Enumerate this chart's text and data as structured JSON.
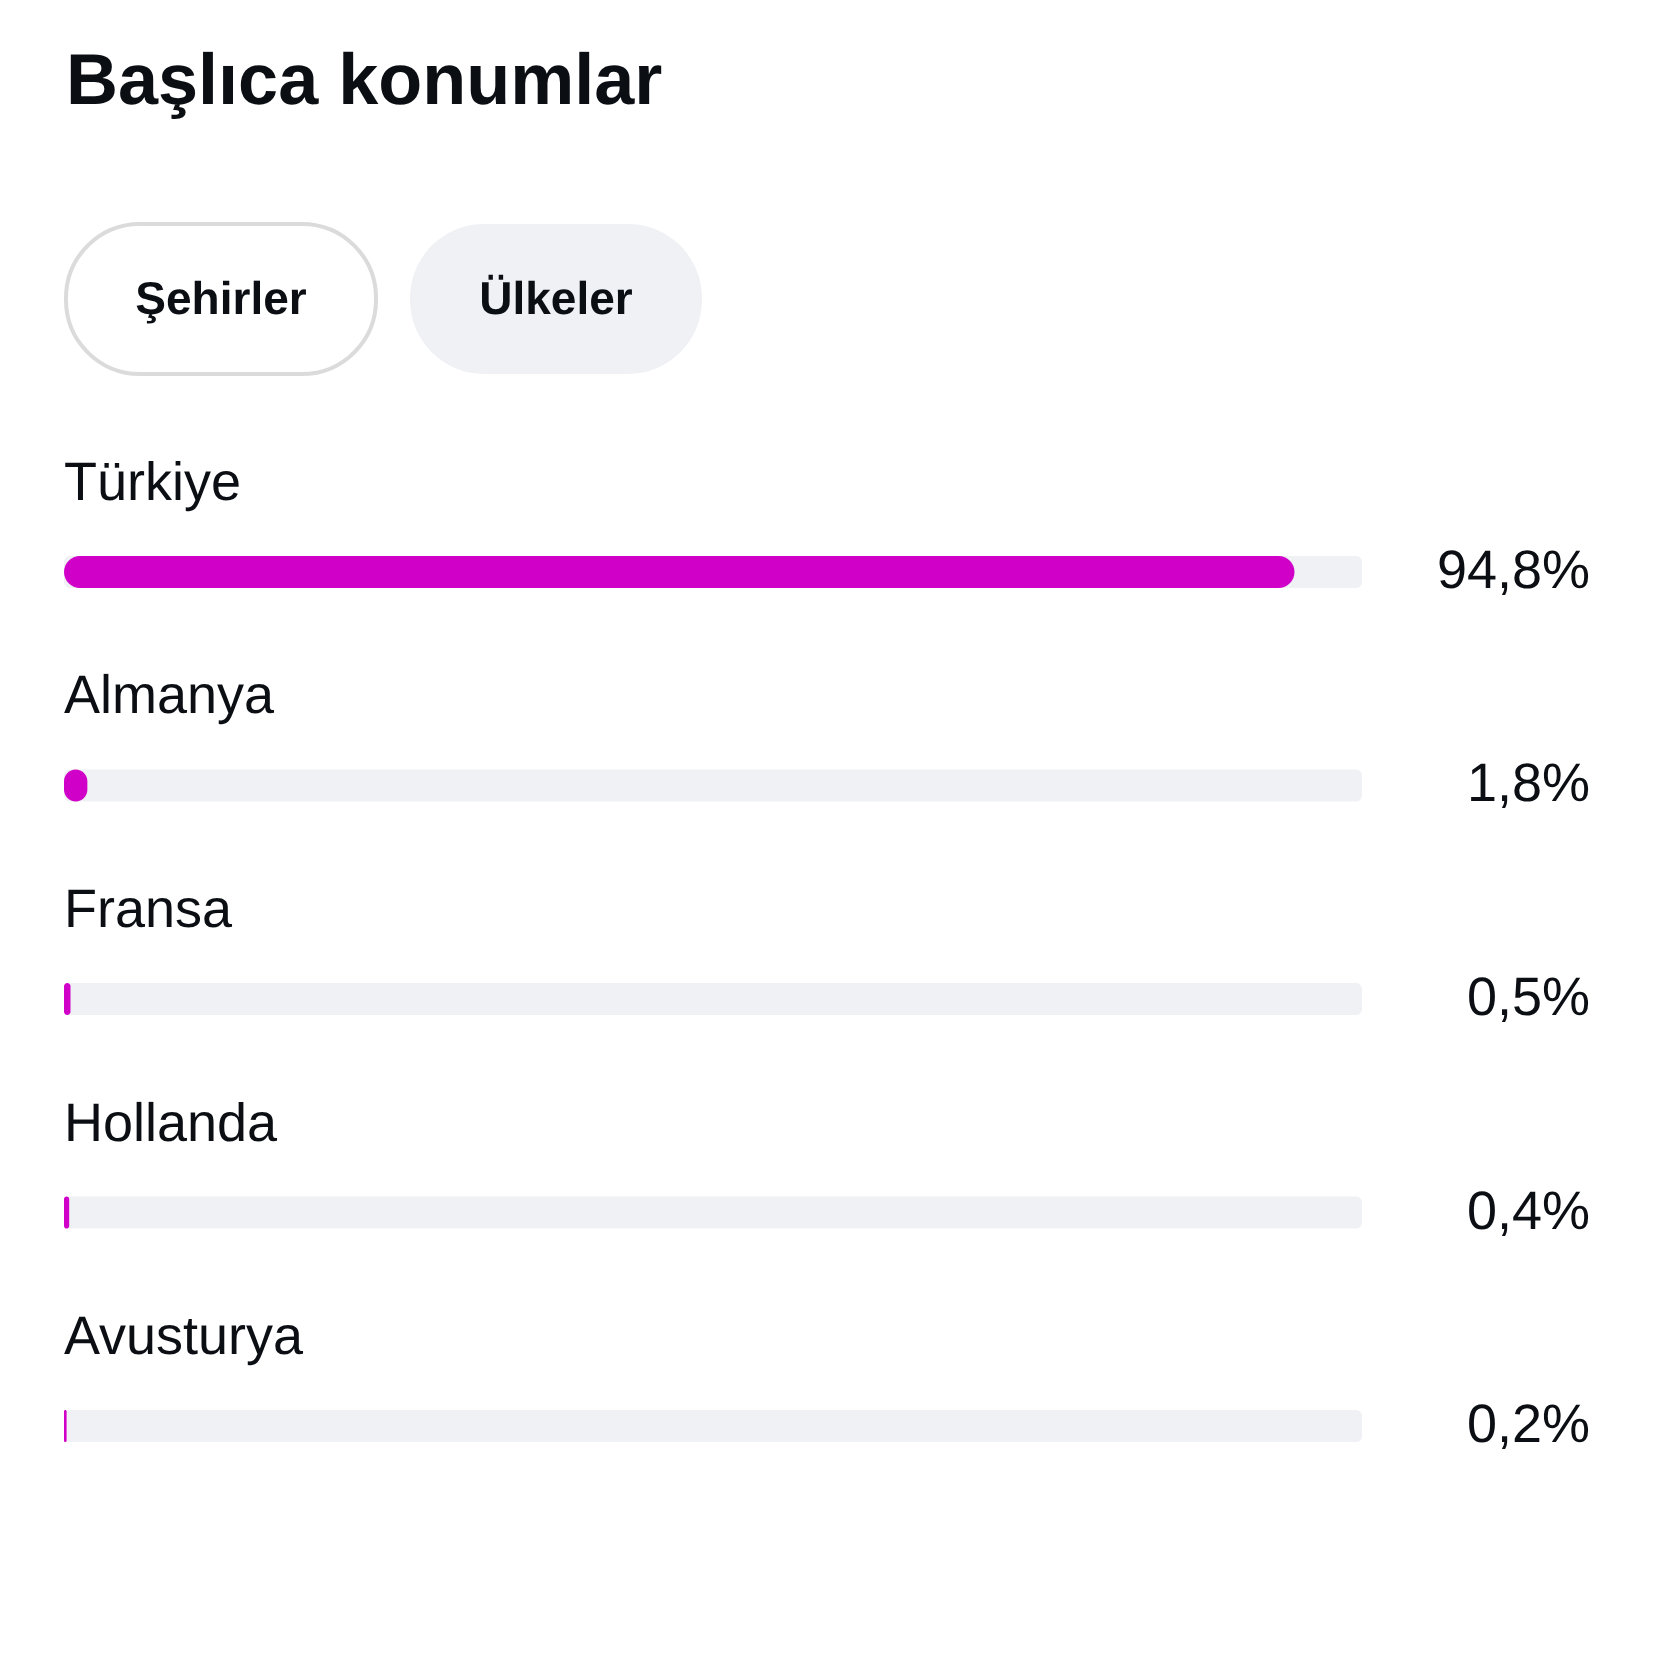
{
  "chart_data": {
    "type": "bar",
    "title": "Başlıca konumlar",
    "annotations": [
      "Şehirler",
      "Ülkeler"
    ],
    "orientation": "horizontal",
    "categories": [
      "Türkiye",
      "Almanya",
      "Fransa",
      "Hollanda",
      "Avusturya"
    ],
    "values": [
      94.8,
      1.8,
      0.5,
      0.4,
      0.2
    ],
    "value_labels": [
      "94,8%",
      "1,8%",
      "0,5%",
      "0,4%",
      "0,2%"
    ],
    "color": "#d100c8",
    "xlim": [
      0,
      100
    ],
    "tick_labels": "y"
  }
}
